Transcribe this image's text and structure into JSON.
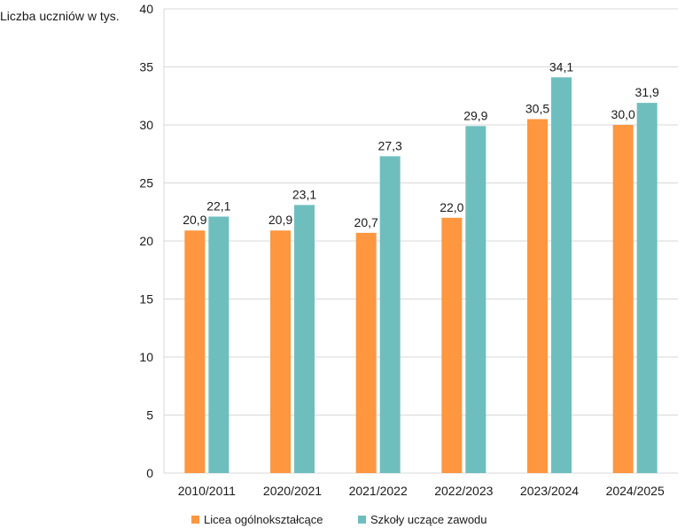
{
  "chart_data": {
    "type": "bar",
    "ylabel": "Liczba uczniów w tys.",
    "xlabel": "",
    "ylim": [
      0,
      40
    ],
    "yticks": [
      0,
      5,
      10,
      15,
      20,
      25,
      30,
      35,
      40
    ],
    "grid": true,
    "legend_position": "bottom",
    "categories": [
      "2010/2011",
      "2020/2021",
      "2021/2022",
      "2022/2023",
      "2023/2024",
      "2024/2025"
    ],
    "series": [
      {
        "name": "Licea ogólnokształcące",
        "color": "#FF9640",
        "values": [
          20.9,
          20.9,
          20.7,
          22.0,
          30.5,
          30.0
        ],
        "labels": [
          "20,9",
          "20,9",
          "20,7",
          "22,0",
          "30,5",
          "30,0"
        ]
      },
      {
        "name": "Szkoły uczące zawodu",
        "color": "#6FBEBE",
        "values": [
          22.1,
          23.1,
          27.3,
          29.9,
          34.1,
          31.9
        ],
        "labels": [
          "22,1",
          "23,1",
          "27,3",
          "29,9",
          "34,1",
          "31,9"
        ]
      }
    ]
  }
}
